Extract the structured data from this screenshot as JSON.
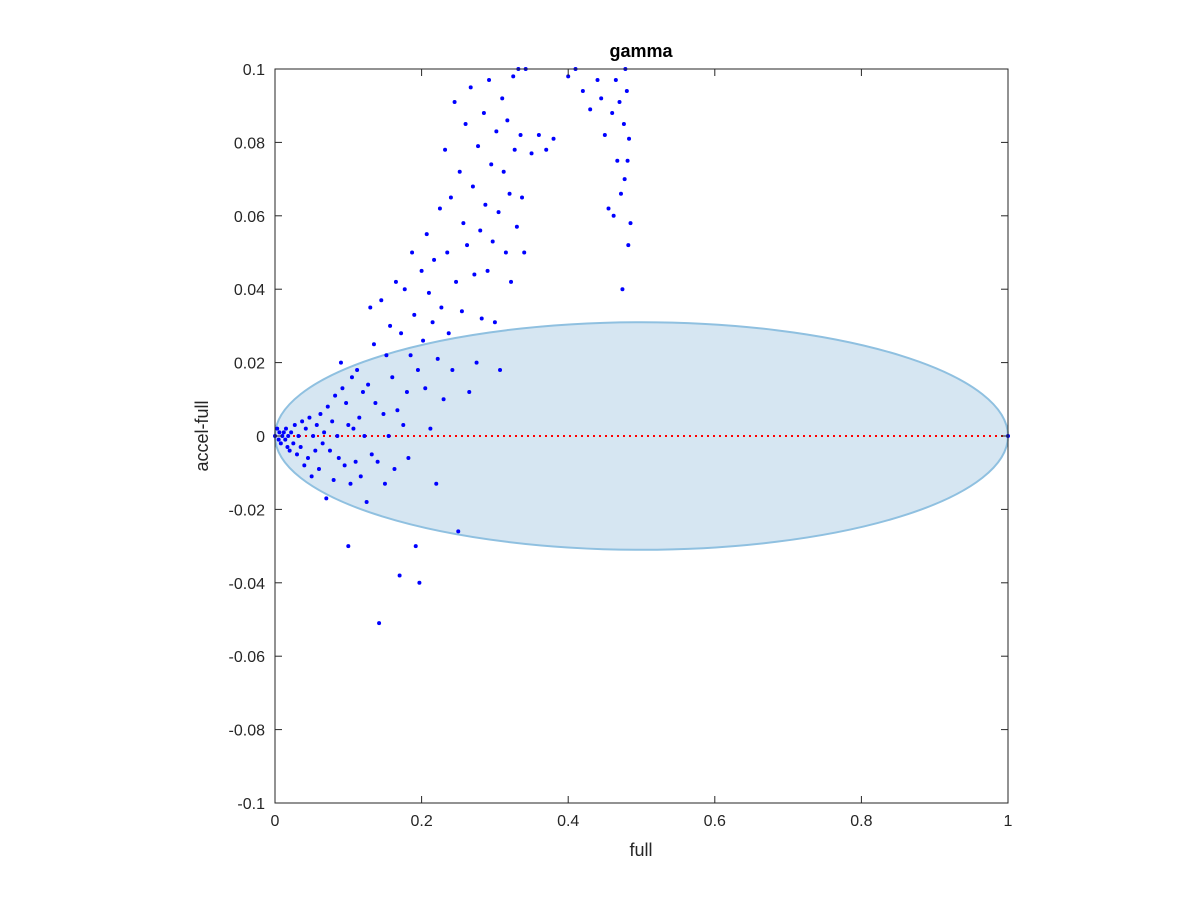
{
  "chart_data": {
    "type": "scatter",
    "title": "gamma",
    "xlabel": "full",
    "ylabel": "accel-full",
    "xlim": [
      0,
      1
    ],
    "ylim": [
      -0.1,
      0.1
    ],
    "xticks": [
      0,
      0.2,
      0.4,
      0.6,
      0.8,
      1
    ],
    "xtick_labels": [
      "0",
      "0.2",
      "0.4",
      "0.6",
      "0.8",
      "1"
    ],
    "yticks": [
      -0.1,
      -0.08,
      -0.06,
      -0.04,
      -0.02,
      0,
      0.02,
      0.04,
      0.06,
      0.08,
      0.1
    ],
    "ytick_labels": [
      "-0.1",
      "-0.08",
      "-0.06",
      "-0.04",
      "-0.02",
      "0",
      "0.02",
      "0.04",
      "0.06",
      "0.08",
      "0.1"
    ],
    "grid": false,
    "box": true,
    "colors": {
      "points": "#0000ff",
      "reference_line": "#ff0000",
      "ellipse_fill": "#d6e6f2",
      "ellipse_edge": "#8fc0e0",
      "axes": "#262626"
    },
    "reference_line": {
      "y": 0,
      "style": "dotted"
    },
    "ellipse": {
      "cx": 0.5,
      "cy": 0,
      "rx": 0.5,
      "ry": 0.031
    },
    "series": [
      {
        "points": [
          [
            0.0,
            0.0
          ],
          [
            0.003,
            0.002
          ],
          [
            0.005,
            -0.001
          ],
          [
            0.006,
            0.001
          ],
          [
            0.008,
            -0.002
          ],
          [
            0.01,
            0.0
          ],
          [
            0.012,
            0.001
          ],
          [
            0.014,
            -0.001
          ],
          [
            0.015,
            0.002
          ],
          [
            0.017,
            -0.003
          ],
          [
            0.018,
            0.0
          ],
          [
            0.02,
            -0.004
          ],
          [
            0.022,
            0.001
          ],
          [
            0.025,
            -0.002
          ],
          [
            0.027,
            0.003
          ],
          [
            0.03,
            -0.005
          ],
          [
            0.032,
            0.0
          ],
          [
            0.035,
            -0.003
          ],
          [
            0.037,
            0.004
          ],
          [
            0.04,
            -0.008
          ],
          [
            0.042,
            0.002
          ],
          [
            0.045,
            -0.006
          ],
          [
            0.047,
            0.005
          ],
          [
            0.05,
            -0.011
          ],
          [
            0.052,
            0.0
          ],
          [
            0.055,
            -0.004
          ],
          [
            0.057,
            0.003
          ],
          [
            0.06,
            -0.009
          ],
          [
            0.062,
            0.006
          ],
          [
            0.065,
            -0.002
          ],
          [
            0.067,
            0.001
          ],
          [
            0.07,
            -0.017
          ],
          [
            0.072,
            0.008
          ],
          [
            0.075,
            -0.004
          ],
          [
            0.078,
            0.004
          ],
          [
            0.08,
            -0.012
          ],
          [
            0.082,
            0.011
          ],
          [
            0.085,
            0.0
          ],
          [
            0.087,
            -0.006
          ],
          [
            0.09,
            0.02
          ],
          [
            0.092,
            0.013
          ],
          [
            0.095,
            -0.008
          ],
          [
            0.097,
            0.009
          ],
          [
            0.1,
            -0.03
          ],
          [
            0.1,
            0.003
          ],
          [
            0.103,
            -0.013
          ],
          [
            0.105,
            0.016
          ],
          [
            0.107,
            0.002
          ],
          [
            0.11,
            -0.007
          ],
          [
            0.112,
            0.018
          ],
          [
            0.115,
            0.005
          ],
          [
            0.117,
            -0.011
          ],
          [
            0.12,
            0.012
          ],
          [
            0.122,
            0.0
          ],
          [
            0.125,
            -0.018
          ],
          [
            0.127,
            0.014
          ],
          [
            0.13,
            0.035
          ],
          [
            0.132,
            -0.005
          ],
          [
            0.135,
            0.025
          ],
          [
            0.137,
            0.009
          ],
          [
            0.14,
            -0.007
          ],
          [
            0.142,
            -0.051
          ],
          [
            0.145,
            0.037
          ],
          [
            0.148,
            0.006
          ],
          [
            0.15,
            -0.013
          ],
          [
            0.152,
            0.022
          ],
          [
            0.155,
            0.0
          ],
          [
            0.157,
            0.03
          ],
          [
            0.16,
            0.016
          ],
          [
            0.163,
            -0.009
          ],
          [
            0.165,
            0.042
          ],
          [
            0.167,
            0.007
          ],
          [
            0.17,
            -0.038
          ],
          [
            0.172,
            0.028
          ],
          [
            0.175,
            0.003
          ],
          [
            0.177,
            0.04
          ],
          [
            0.18,
            0.012
          ],
          [
            0.182,
            -0.006
          ],
          [
            0.185,
            0.022
          ],
          [
            0.187,
            0.05
          ],
          [
            0.19,
            0.033
          ],
          [
            0.192,
            -0.03
          ],
          [
            0.195,
            0.018
          ],
          [
            0.197,
            -0.04
          ],
          [
            0.2,
            0.045
          ],
          [
            0.202,
            0.026
          ],
          [
            0.205,
            0.013
          ],
          [
            0.207,
            0.055
          ],
          [
            0.21,
            0.039
          ],
          [
            0.212,
            0.002
          ],
          [
            0.215,
            0.031
          ],
          [
            0.217,
            0.048
          ],
          [
            0.22,
            -0.013
          ],
          [
            0.222,
            0.021
          ],
          [
            0.225,
            0.062
          ],
          [
            0.227,
            0.035
          ],
          [
            0.23,
            0.01
          ],
          [
            0.232,
            0.078
          ],
          [
            0.235,
            0.05
          ],
          [
            0.237,
            0.028
          ],
          [
            0.24,
            0.065
          ],
          [
            0.242,
            0.018
          ],
          [
            0.245,
            0.091
          ],
          [
            0.247,
            0.042
          ],
          [
            0.25,
            -0.026
          ],
          [
            0.252,
            0.072
          ],
          [
            0.255,
            0.034
          ],
          [
            0.257,
            0.058
          ],
          [
            0.26,
            0.085
          ],
          [
            0.262,
            0.052
          ],
          [
            0.265,
            0.012
          ],
          [
            0.267,
            0.095
          ],
          [
            0.27,
            0.068
          ],
          [
            0.272,
            0.044
          ],
          [
            0.275,
            0.02
          ],
          [
            0.277,
            0.079
          ],
          [
            0.28,
            0.056
          ],
          [
            0.282,
            0.032
          ],
          [
            0.285,
            0.088
          ],
          [
            0.287,
            0.063
          ],
          [
            0.29,
            0.045
          ],
          [
            0.292,
            0.097
          ],
          [
            0.295,
            0.074
          ],
          [
            0.297,
            0.053
          ],
          [
            0.3,
            0.031
          ],
          [
            0.302,
            0.083
          ],
          [
            0.305,
            0.061
          ],
          [
            0.307,
            0.018
          ],
          [
            0.31,
            0.092
          ],
          [
            0.312,
            0.072
          ],
          [
            0.315,
            0.05
          ],
          [
            0.317,
            0.086
          ],
          [
            0.32,
            0.066
          ],
          [
            0.322,
            0.042
          ],
          [
            0.325,
            0.098
          ],
          [
            0.327,
            0.078
          ],
          [
            0.33,
            0.057
          ],
          [
            0.332,
            0.1
          ],
          [
            0.335,
            0.082
          ],
          [
            0.337,
            0.065
          ],
          [
            0.34,
            0.05
          ],
          [
            0.342,
            0.1
          ],
          [
            0.35,
            0.077
          ],
          [
            0.36,
            0.082
          ],
          [
            0.37,
            0.078
          ],
          [
            0.38,
            0.081
          ],
          [
            0.4,
            0.098
          ],
          [
            0.41,
            0.1
          ],
          [
            0.42,
            0.094
          ],
          [
            0.43,
            0.089
          ],
          [
            0.44,
            0.097
          ],
          [
            0.445,
            0.092
          ],
          [
            0.45,
            0.082
          ],
          [
            0.455,
            0.062
          ],
          [
            0.46,
            0.088
          ],
          [
            0.462,
            0.06
          ],
          [
            0.465,
            0.097
          ],
          [
            0.467,
            0.075
          ],
          [
            0.47,
            0.091
          ],
          [
            0.472,
            0.066
          ],
          [
            0.474,
            0.04
          ],
          [
            0.476,
            0.085
          ],
          [
            0.477,
            0.07
          ],
          [
            0.478,
            0.1
          ],
          [
            0.48,
            0.094
          ],
          [
            0.481,
            0.075
          ],
          [
            0.482,
            0.052
          ],
          [
            0.483,
            0.081
          ],
          [
            0.485,
            0.058
          ],
          [
            1.0,
            0.0
          ]
        ]
      }
    ]
  }
}
